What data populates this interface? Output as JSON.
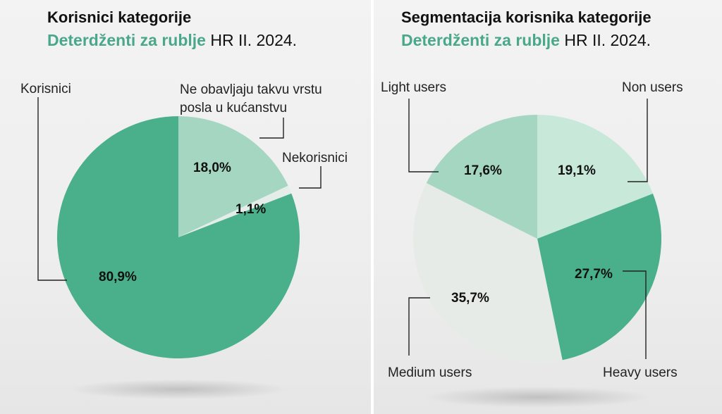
{
  "chart_data": [
    {
      "type": "pie",
      "title": "Korisnici kategorije",
      "subtitle_category": "Deterdženti za rublje",
      "subtitle_rest": "HR II. 2024.",
      "slices": [
        {
          "label": "Ne obavljaju takvu vrstu posla u kućanstvu",
          "value": 18.0,
          "value_label": "18,0%",
          "color": "#a5d6c2"
        },
        {
          "label": "Nekorisnici",
          "value": 1.1,
          "value_label": "1,1%",
          "color": "#e4ede9"
        },
        {
          "label": "Korisnici",
          "value": 80.9,
          "value_label": "80,9%",
          "color": "#4aaf8b"
        }
      ]
    },
    {
      "type": "pie",
      "title": "Segmentacija korisnika kategorije",
      "subtitle_category": "Deterdženti za rublje",
      "subtitle_rest": "HR II. 2024.",
      "slices": [
        {
          "label": "Non users",
          "value": 19.1,
          "value_label": "19,1%",
          "color": "#c8e8da"
        },
        {
          "label": "Heavy users",
          "value": 27.7,
          "value_label": "27,7%",
          "color": "#4aaf8b"
        },
        {
          "label": "Medium users",
          "value": 35.7,
          "value_label": "35,7%",
          "color": "#e6ebe8"
        },
        {
          "label": "Light users",
          "value": 17.6,
          "value_label": "17,6%",
          "color": "#a5d6c2"
        }
      ]
    }
  ],
  "left_labels": {
    "top_line1": "Ne obavljaju takvu vrstu",
    "top_line2": "posla u kućanstvu"
  }
}
